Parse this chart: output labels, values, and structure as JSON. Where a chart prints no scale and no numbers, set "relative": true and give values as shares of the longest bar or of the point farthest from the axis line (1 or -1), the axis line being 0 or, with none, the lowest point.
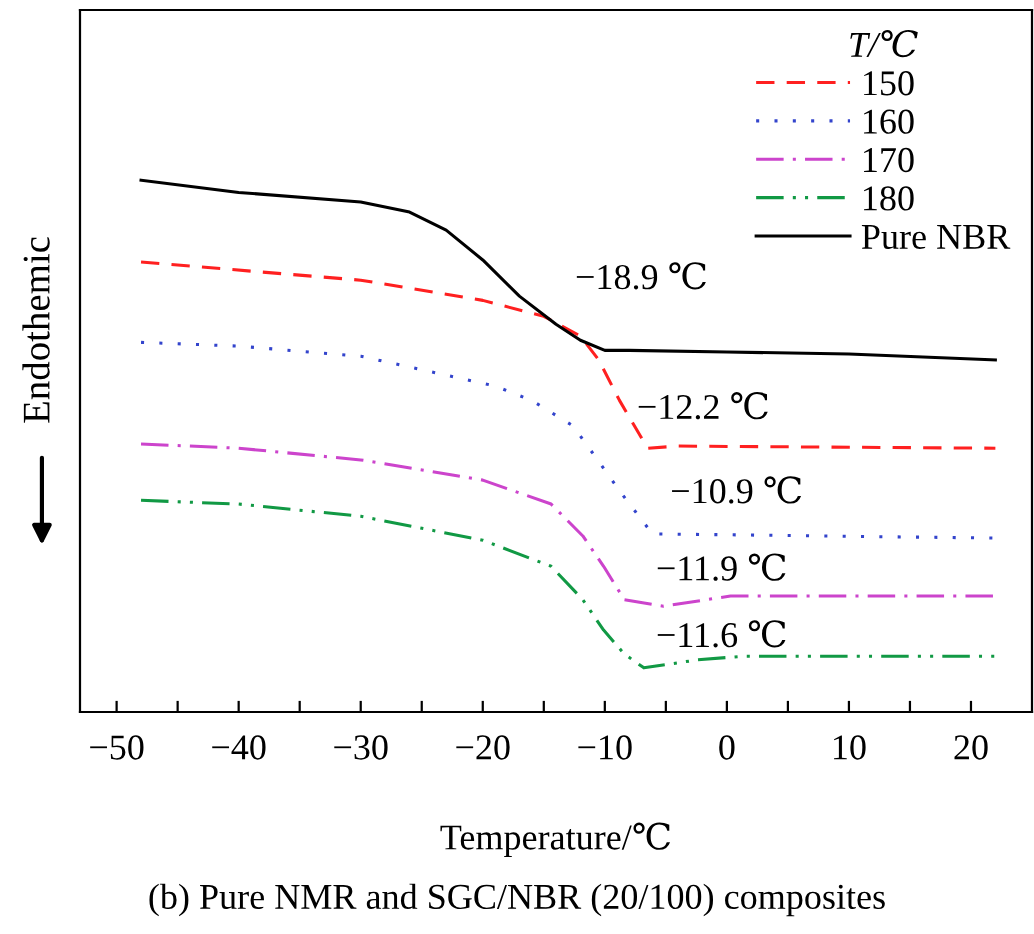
{
  "chart_data": {
    "type": "line",
    "relative": true,
    "title": "(b) Pure NMR and SGC/NBR (20/100) composites",
    "xlabel": "Temperature/℃",
    "ylabel": "Endothemic",
    "legend_title": "T/℃",
    "legend": "top right",
    "grid": false,
    "marker": "none",
    "xlim": [
      -53,
      25
    ],
    "xticks": [
      -50,
      {
        "value": -45,
        "label": null
      },
      -40,
      {
        "value": -35,
        "label": null
      },
      -30,
      {
        "value": -25,
        "label": null
      },
      -20,
      {
        "value": -15,
        "label": null
      },
      -10,
      {
        "value": -5,
        "label": null
      },
      0,
      {
        "value": 5,
        "label": null
      },
      10,
      {
        "value": 15,
        "label": null
      },
      20
    ],
    "annotations": [
      "−18.9 ℃",
      "−12.2 ℃",
      "−10.9 ℃",
      "−11.9 ℃",
      "−11.6 ℃"
    ],
    "series": [
      {
        "name": "150",
        "color": "#ff2020",
        "line_style": "dashed",
        "x": [
          -48,
          -30,
          -20,
          -15,
          -12,
          -10.5,
          -8.8,
          -6.5,
          -4,
          22
        ],
        "values": [
          0.846,
          0.812,
          0.774,
          0.744,
          0.707,
          0.662,
          0.586,
          0.496,
          0.5,
          0.496
        ]
      },
      {
        "name": "160",
        "color": "#3344cc",
        "line_style": "dotted",
        "x": [
          -48,
          -40,
          -30,
          -19,
          -16,
          -12.6,
          -10,
          -8.6,
          -6.1,
          22
        ],
        "values": [
          0.695,
          0.688,
          0.669,
          0.613,
          0.586,
          0.538,
          0.455,
          0.41,
          0.335,
          0.327
        ]
      },
      {
        "name": "170",
        "color": "#cc44cc",
        "line_style": "dashdot",
        "x": [
          -48,
          -40,
          -30,
          -20,
          -14.4,
          -11.8,
          -10.1,
          -8.4,
          -5.2,
          0.3,
          22
        ],
        "values": [
          0.504,
          0.496,
          0.474,
          0.436,
          0.391,
          0.331,
          0.274,
          0.211,
          0.199,
          0.218,
          0.218
        ]
      },
      {
        "name": "180",
        "color": "#119944",
        "line_style": "dashdotdot",
        "x": [
          -48,
          -40,
          -30,
          -20,
          -14.4,
          -11.8,
          -10.1,
          -8.4,
          -6.8,
          -2.4,
          1.4,
          22
        ],
        "values": [
          0.398,
          0.391,
          0.368,
          0.323,
          0.274,
          0.211,
          0.154,
          0.109,
          0.083,
          0.098,
          0.105,
          0.105
        ]
      },
      {
        "name": "Pure NBR",
        "color": "#000000",
        "line_style": "solid",
        "x": [
          -48,
          -40,
          -30,
          -26,
          -23,
          -20,
          -17,
          -14,
          -12,
          -10,
          -8,
          0,
          10,
          22
        ],
        "values": [
          1.0,
          0.977,
          0.959,
          0.94,
          0.906,
          0.85,
          0.782,
          0.729,
          0.699,
          0.68,
          0.68,
          0.677,
          0.673,
          0.662
        ]
      }
    ]
  }
}
